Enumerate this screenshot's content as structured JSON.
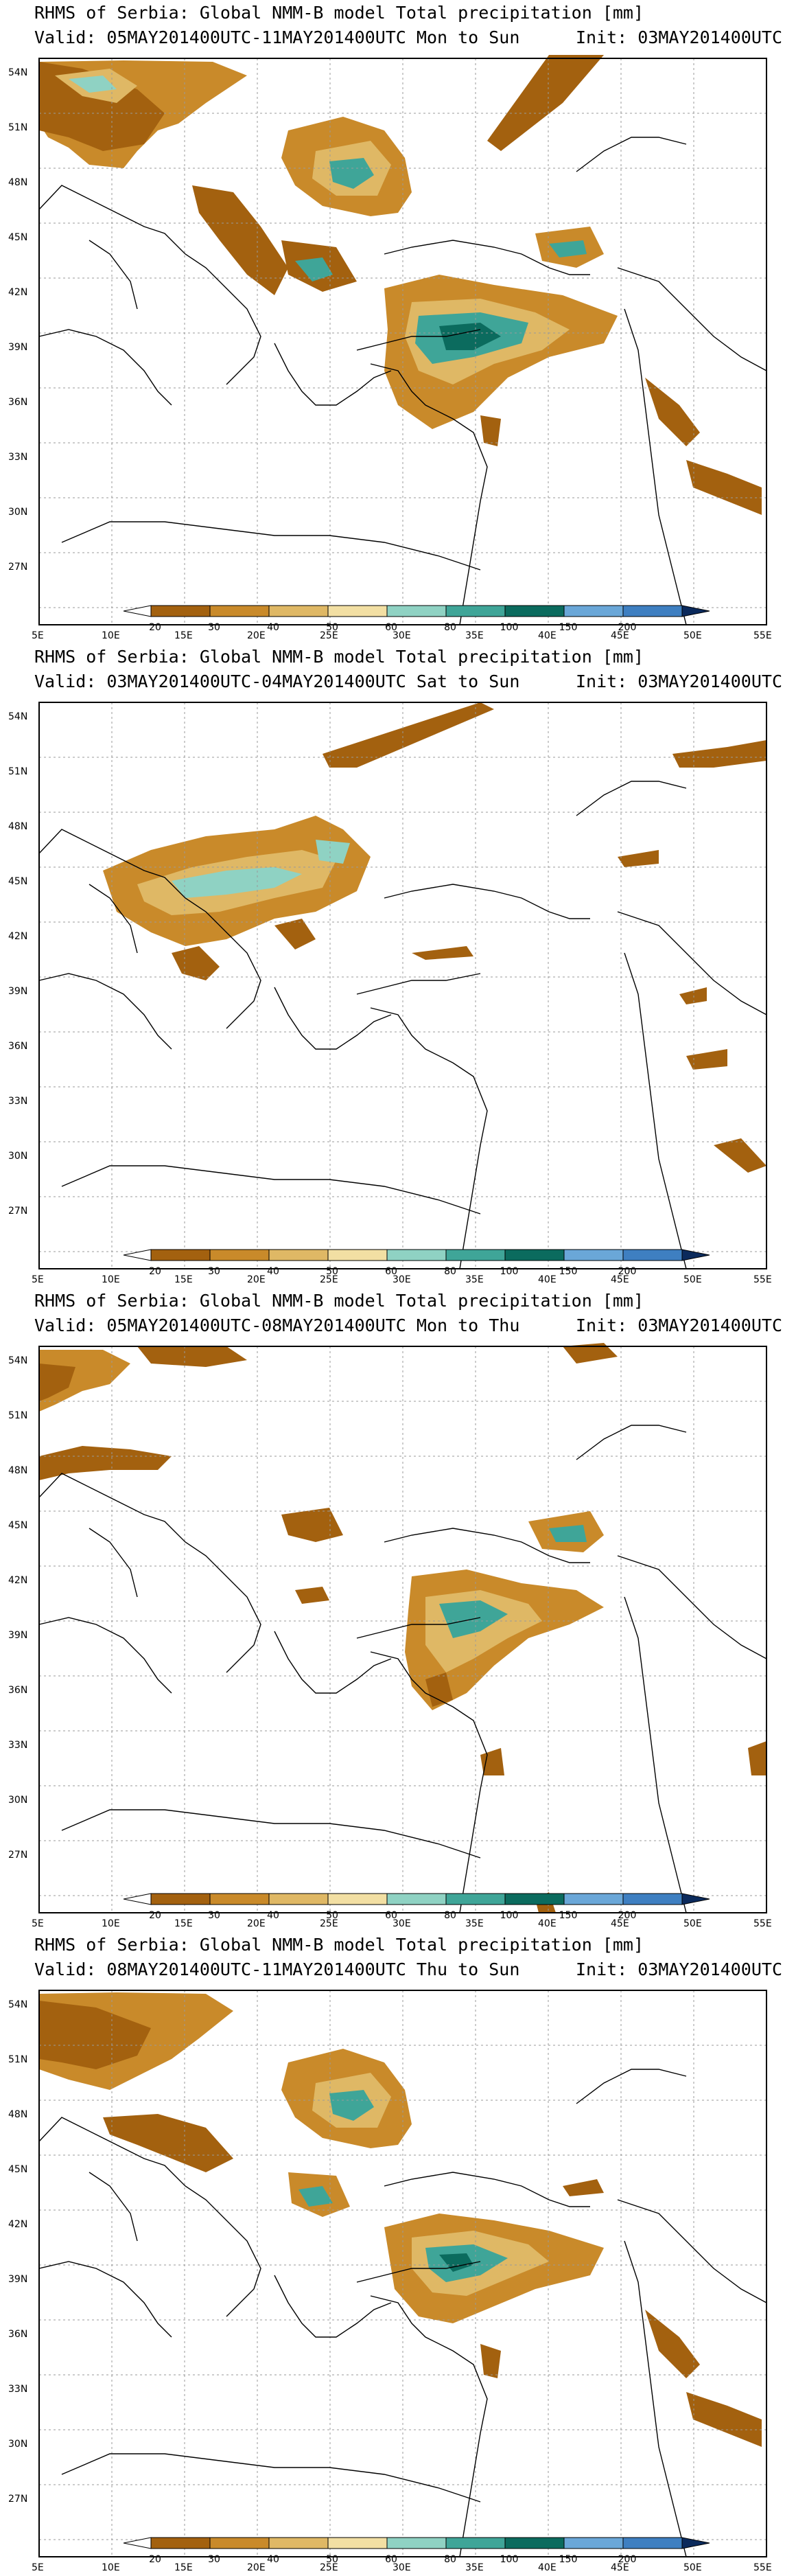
{
  "colors": {
    "bins": [
      "#a3610f",
      "#c98a2a",
      "#dfb865",
      "#f2dfa3",
      "#8fd2c3",
      "#3fa598",
      "#0b6b5e",
      "#6aa7d8",
      "#3e7fc1",
      "#0d3a7a"
    ],
    "first_triangle": "#ffffff",
    "last_triangle": "#0b2a5c",
    "coast": "#000000",
    "grid": "#9a9a9a"
  },
  "colorbar_labels": [
    "20",
    "30",
    "40",
    "50",
    "60",
    "80",
    "100",
    "150",
    "200"
  ],
  "lat_labels": [
    "54N",
    "51N",
    "48N",
    "45N",
    "42N",
    "39N",
    "36N",
    "33N",
    "30N",
    "27N"
  ],
  "lon_labels": [
    "5E",
    "10E",
    "15E",
    "20E",
    "25E",
    "30E",
    "35E",
    "40E",
    "45E",
    "50E",
    "55E"
  ],
  "panels": [
    {
      "title": "RHMS of Serbia: Global NMM-B model Total precipitation [mm]",
      "valid": "Valid: 05MAY201400UTC-11MAY201400UTC Mon to Sun",
      "init": "Init: 03MAY201400UTC"
    },
    {
      "title": "RHMS of Serbia: Global NMM-B model Total precipitation [mm]",
      "valid": "Valid: 03MAY201400UTC-04MAY201400UTC Sat to Sun",
      "init": "Init: 03MAY201400UTC"
    },
    {
      "title": "RHMS of Serbia: Global NMM-B model Total precipitation [mm]",
      "valid": "Valid: 05MAY201400UTC-08MAY201400UTC Mon to Thu",
      "init": "Init: 03MAY201400UTC"
    },
    {
      "title": "RHMS of Serbia: Global NMM-B model Total precipitation [mm]",
      "valid": "Valid: 08MAY201400UTC-11MAY201400UTC Thu to Sun",
      "init": "Init: 03MAY201400UTC"
    }
  ]
}
